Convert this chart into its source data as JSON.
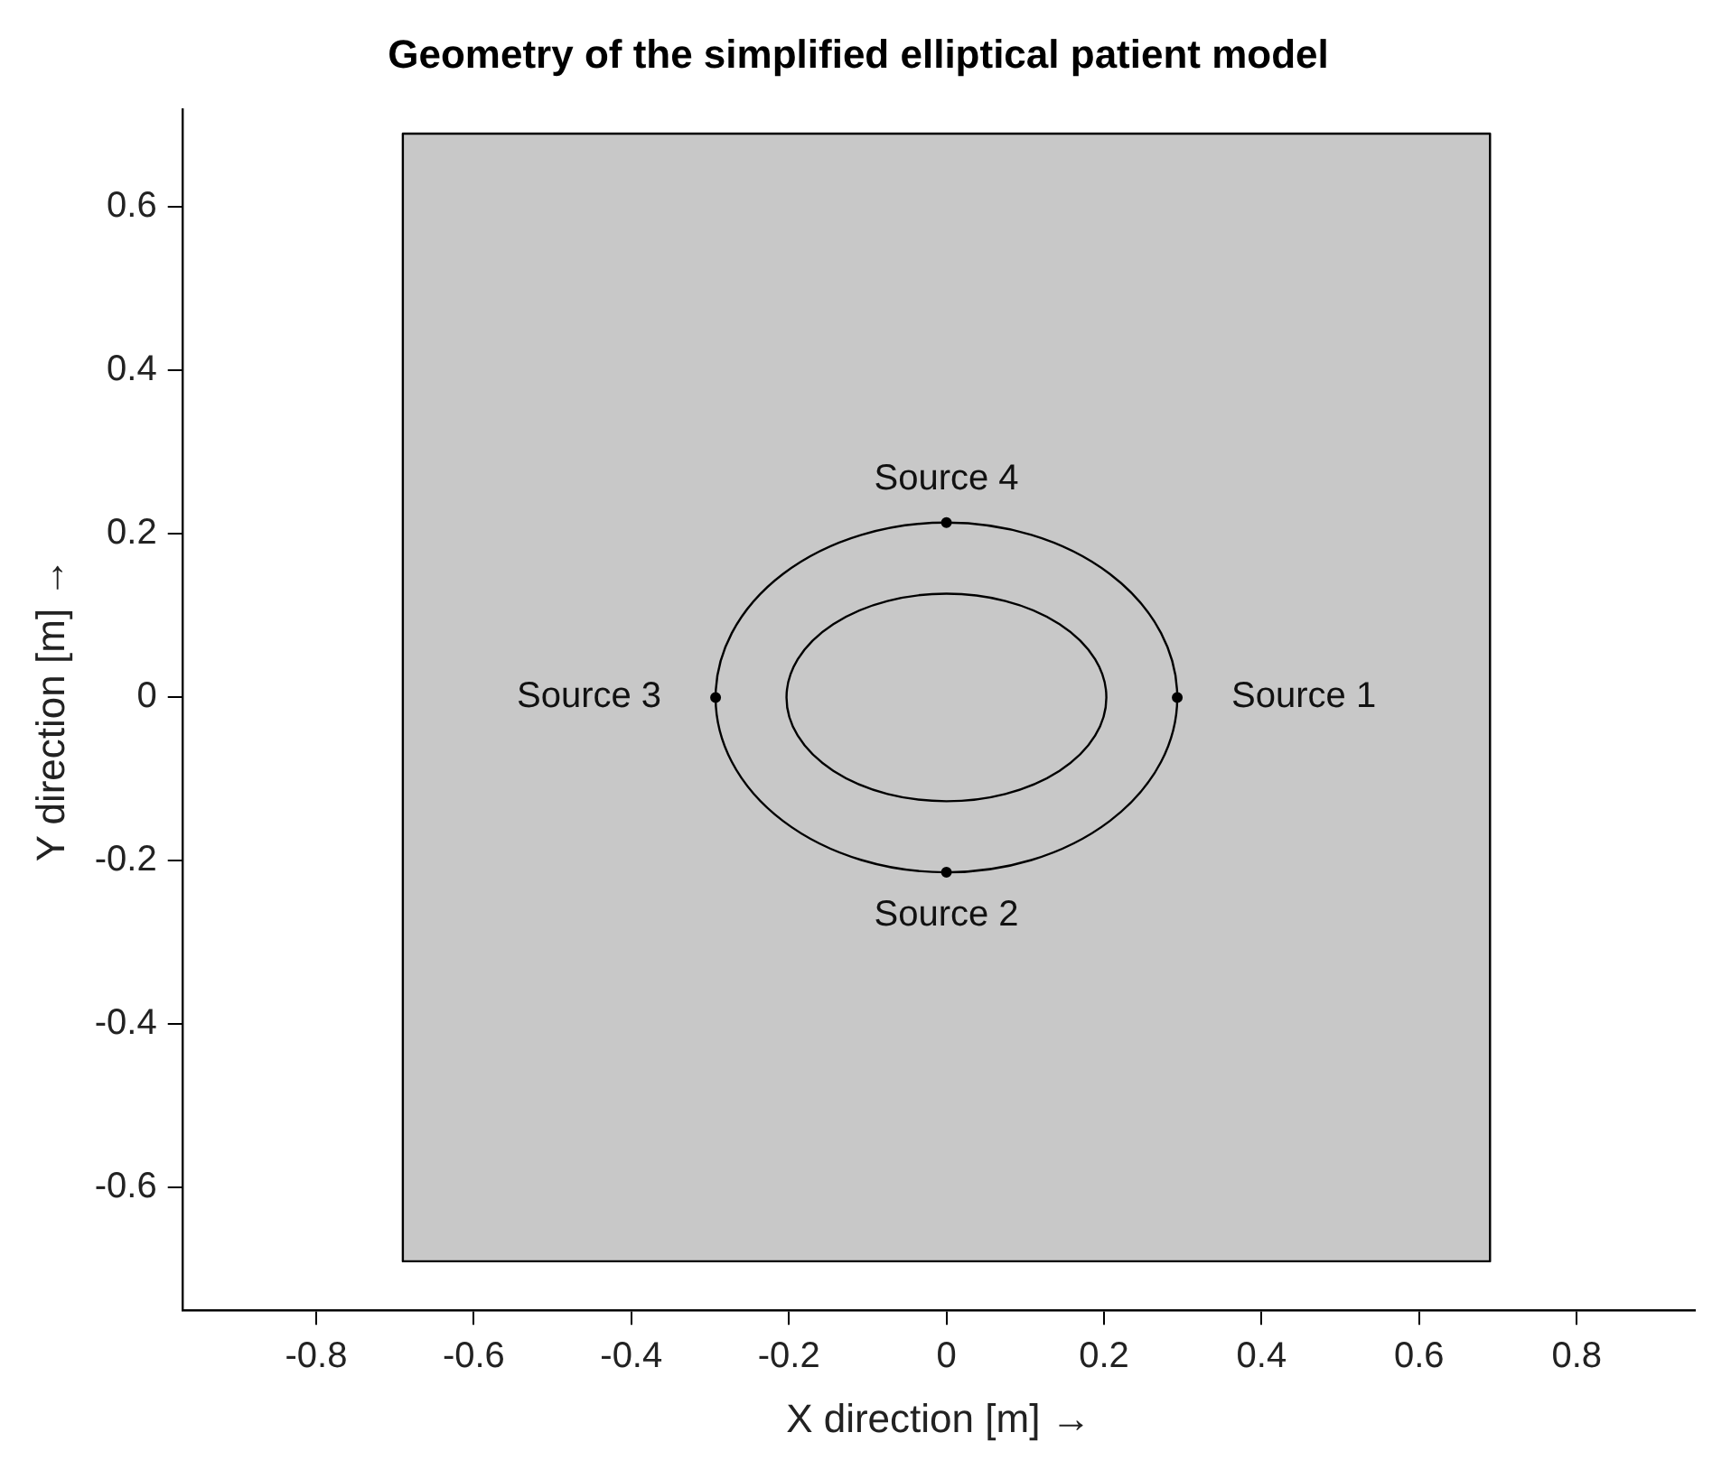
{
  "chart_data": {
    "type": "line",
    "title": "Geometry of the simplified elliptical patient model",
    "xlabel": "X direction [m] →",
    "ylabel": "Y direction [m] →",
    "xlim": [
      -0.97,
      0.95
    ],
    "ylim": [
      -0.75,
      0.72
    ],
    "xticks": [
      -0.8,
      -0.6,
      -0.4,
      -0.2,
      0,
      0.2,
      0.4,
      0.6,
      0.8
    ],
    "yticks": [
      -0.6,
      -0.4,
      -0.2,
      0,
      0.2,
      0.4,
      0.6
    ],
    "grid": false,
    "legend": false,
    "series": [
      {
        "type": "area",
        "color": "#c8c8c8",
        "marker": "none",
        "x": [
          -0.69,
          0.69,
          0.69,
          -0.69,
          -0.69
        ],
        "values": [
          -0.69,
          -0.69,
          0.69,
          0.69,
          -0.69
        ]
      },
      {
        "type": "scatter",
        "color": "#000000",
        "marker": "circle",
        "x": [
          0.293,
          0,
          -0.293,
          0
        ],
        "values": [
          0,
          -0.214,
          0,
          0.214
        ]
      }
    ],
    "annotations": [
      {
        "text": "Source 1",
        "x": 0.293,
        "y": 0
      },
      {
        "text": "Source 2",
        "x": 0,
        "y": -0.214
      },
      {
        "text": "Source 3",
        "x": -0.293,
        "y": 0
      },
      {
        "text": "Source 4",
        "x": 0,
        "y": 0.214
      }
    ]
  }
}
